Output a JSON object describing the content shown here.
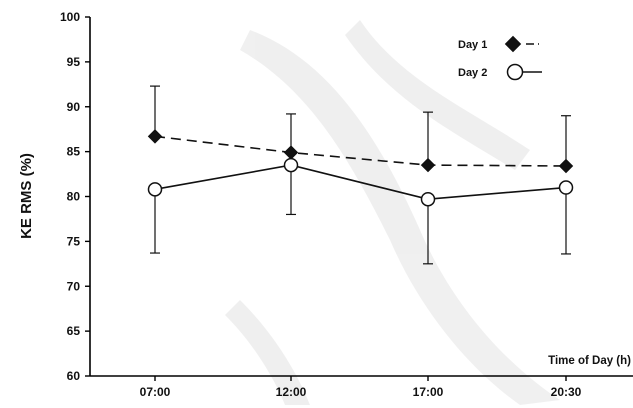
{
  "chart_data": {
    "type": "line",
    "title": "",
    "ylabel": "KE RMS (%)",
    "xlabel": "Time of Day (h)",
    "categories": [
      "07:00",
      "12:00",
      "17:00",
      "20:30"
    ],
    "ylim": [
      60,
      100
    ],
    "yticks": [
      60,
      65,
      70,
      75,
      80,
      85,
      90,
      95,
      100
    ],
    "grid": false,
    "legend_position": "top-right",
    "series": [
      {
        "name": "Day 1",
        "marker": "diamond-filled",
        "line": "dashed",
        "color": "#111111",
        "values": [
          86.7,
          84.9,
          83.5,
          83.4
        ],
        "error_up": [
          5.6,
          4.3,
          5.9,
          5.6
        ]
      },
      {
        "name": "Day 2",
        "marker": "circle-open",
        "line": "solid",
        "color": "#111111",
        "values": [
          80.8,
          83.5,
          79.7,
          81.0
        ],
        "error_down": [
          7.1,
          5.5,
          7.2,
          7.4
        ]
      }
    ]
  }
}
